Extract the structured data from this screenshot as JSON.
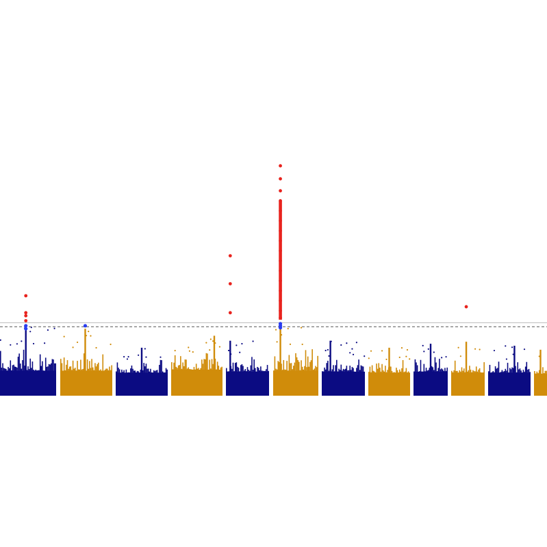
{
  "chart_data": {
    "type": "scatter",
    "subtype": "manhattan",
    "title": "",
    "xlabel": "",
    "ylabel": "",
    "x_axis_visible": false,
    "y_axis_visible": false,
    "grid": false,
    "legend": "none",
    "colors": {
      "odd_block": "#0b0b82",
      "even_block": "#d08c0a",
      "significant": "#e8231e",
      "suggestive": "#2a3df0",
      "threshold_line": "#555555"
    },
    "thresholds": [
      {
        "kind": "genome-wide significance",
        "style": "solid",
        "color": "#bbbbbb",
        "value": 7.3
      },
      {
        "kind": "suggestive",
        "style": "dashed",
        "color": "#555555",
        "value": 6.9
      }
    ],
    "ylim": [
      0,
      30
    ],
    "series": [
      {
        "block": 1,
        "color": "odd_block",
        "base": 2.5,
        "peak": 6.9,
        "hits_significant": [
          7.5,
          8.0,
          8.3,
          10.0
        ],
        "hits_suggestive": [
          6.7,
          7.0
        ]
      },
      {
        "block": 2,
        "color": "even_block",
        "base": 2.5,
        "peak": 6.7,
        "hits_significant": [],
        "hits_suggestive": [
          7.0
        ]
      },
      {
        "block": 3,
        "color": "odd_block",
        "base": 2.3,
        "peak": 4.8,
        "hits_significant": [],
        "hits_suggestive": []
      },
      {
        "block": 4,
        "color": "even_block",
        "base": 2.6,
        "peak": 6.0,
        "hits_significant": [],
        "hits_suggestive": []
      },
      {
        "block": 5,
        "color": "odd_block",
        "base": 2.4,
        "peak": 5.5,
        "hits_significant": [
          8.3,
          11.2,
          14.0
        ],
        "hits_suggestive": []
      },
      {
        "block": 6,
        "color": "even_block",
        "base": 2.5,
        "peak": 7.0,
        "hits_significant": [
          23.0,
          21.7,
          20.5,
          19.5,
          18.5,
          17.5,
          16.5,
          15.5,
          14.5,
          13.5,
          12.5,
          11.5,
          10.5,
          9.5,
          8.5,
          7.8
        ],
        "hits_suggestive": [
          6.8,
          7.0,
          7.2
        ]
      },
      {
        "block": 7,
        "color": "odd_block",
        "base": 2.4,
        "peak": 5.5,
        "hits_significant": [],
        "hits_suggestive": []
      },
      {
        "block": 8,
        "color": "even_block",
        "base": 2.3,
        "peak": 4.8,
        "hits_significant": [],
        "hits_suggestive": []
      },
      {
        "block": 9,
        "color": "odd_block",
        "base": 2.4,
        "peak": 5.2,
        "hits_significant": [],
        "hits_suggestive": []
      },
      {
        "block": 10,
        "color": "even_block",
        "base": 2.3,
        "peak": 5.4,
        "hits_significant": [
          8.9
        ],
        "hits_suggestive": []
      },
      {
        "block": 11,
        "color": "odd_block",
        "base": 2.3,
        "peak": 5.0,
        "hits_significant": [],
        "hits_suggestive": []
      },
      {
        "block": 12,
        "color": "even_block",
        "base": 2.2,
        "peak": 4.6,
        "hits_significant": [],
        "hits_suggestive": []
      }
    ]
  }
}
